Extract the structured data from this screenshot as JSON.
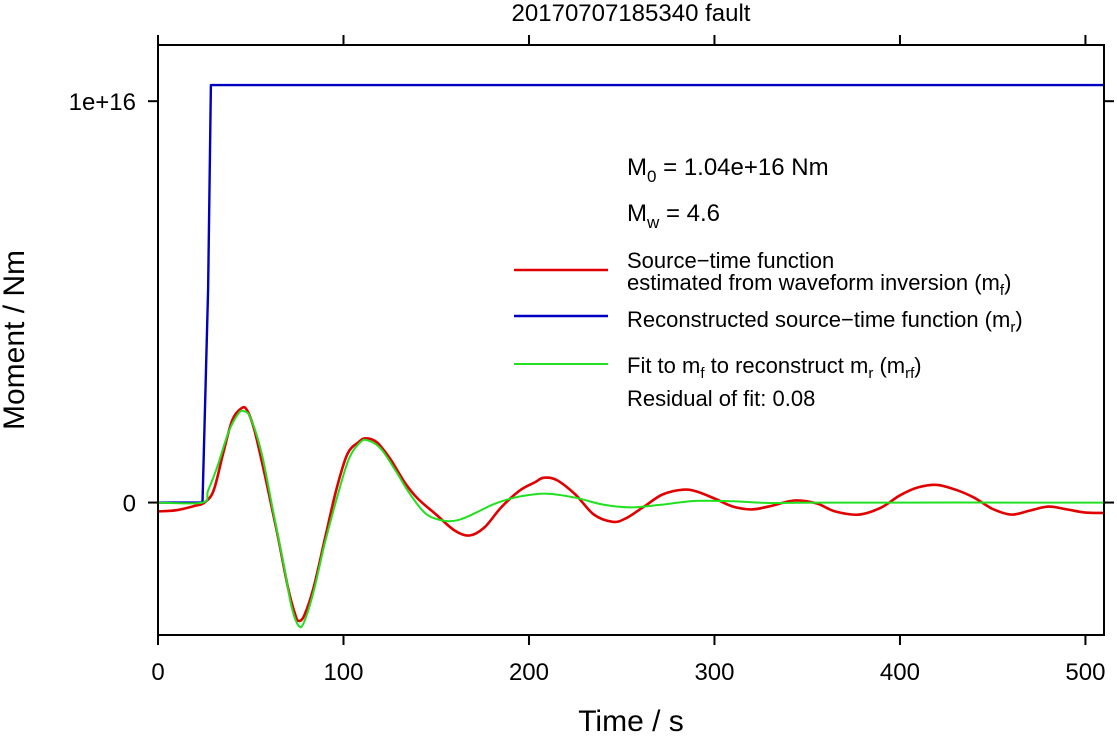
{
  "chart_data": {
    "type": "line",
    "title": "20170707185340 fault",
    "xlabel": "Time / s",
    "ylabel": "Moment / Nm",
    "xlim": [
      0,
      510
    ],
    "ylim": [
      -3300000000000000.0,
      1.14e+16
    ],
    "xticks": [
      0,
      100,
      200,
      300,
      400,
      500
    ],
    "xtick_labels": [
      "0",
      "100",
      "200",
      "300",
      "400",
      "500"
    ],
    "yticks": [
      0,
      1e+16
    ],
    "ytick_labels": [
      "0",
      "1e+16"
    ],
    "grid": false,
    "legend_position": "right",
    "annotations": {
      "m0_prefix": "M",
      "m0_sub": "0",
      "m0_value": " = 1.04e+16 Nm",
      "mw_prefix": "M",
      "mw_sub": "w",
      "mw_value": " = 4.6"
    },
    "legend": [
      {
        "color": "#e00000",
        "line1": "Source−time function",
        "line2_a": "estimated from waveform inversion (m",
        "line2_sub": "f",
        "line2_b": ")"
      },
      {
        "color": "#0000c0",
        "line1_a": "Reconstructed source−time function (m",
        "line1_sub": "r",
        "line1_b": ")"
      },
      {
        "color": "#20e020",
        "line1_a": "Fit to m",
        "line1_sub1": "f",
        "line1_b": " to reconstruct m",
        "line1_sub2": "r",
        "line1_c": " (m",
        "line1_sub3": "rf",
        "line1_d": ")",
        "line2": "Residual of fit: 0.08"
      }
    ],
    "series": [
      {
        "name": "Source−time function estimated from waveform inversion (mf)",
        "color": "#e00000",
        "points": [
          [
            0,
            -220000000000000.0
          ],
          [
            10,
            -190000000000000.0
          ],
          [
            20,
            -80000000000000.0
          ],
          [
            25,
            0
          ],
          [
            30,
            300000000000000.0
          ],
          [
            35,
            1200000000000000.0
          ],
          [
            40,
            2050000000000000.0
          ],
          [
            45,
            2350000000000000.0
          ],
          [
            48,
            2300000000000000.0
          ],
          [
            52,
            1800000000000000.0
          ],
          [
            58,
            600000000000000.0
          ],
          [
            64,
            -700000000000000.0
          ],
          [
            70,
            -2100000000000000.0
          ],
          [
            74,
            -2800000000000000.0
          ],
          [
            76,
            -2950000000000000.0
          ],
          [
            79,
            -2800000000000000.0
          ],
          [
            84,
            -2100000000000000.0
          ],
          [
            90,
            -900000000000000.0
          ],
          [
            96,
            300000000000000.0
          ],
          [
            102,
            1200000000000000.0
          ],
          [
            108,
            1500000000000000.0
          ],
          [
            112,
            1600000000000000.0
          ],
          [
            118,
            1500000000000000.0
          ],
          [
            125,
            1100000000000000.0
          ],
          [
            133,
            500000000000000.0
          ],
          [
            140,
            100000000000000.0
          ],
          [
            150,
            -300000000000000.0
          ],
          [
            160,
            -700000000000000.0
          ],
          [
            168,
            -820000000000000.0
          ],
          [
            176,
            -620000000000000.0
          ],
          [
            185,
            -120000000000000.0
          ],
          [
            195,
            300000000000000.0
          ],
          [
            203,
            500000000000000.0
          ],
          [
            208,
            620000000000000.0
          ],
          [
            215,
            560000000000000.0
          ],
          [
            225,
            200000000000000.0
          ],
          [
            235,
            -300000000000000.0
          ],
          [
            245,
            -480000000000000.0
          ],
          [
            252,
            -400000000000000.0
          ],
          [
            262,
            -100000000000000.0
          ],
          [
            272,
            200000000000000.0
          ],
          [
            283,
            320000000000000.0
          ],
          [
            290,
            280000000000000.0
          ],
          [
            300,
            100000000000000.0
          ],
          [
            310,
            -100000000000000.0
          ],
          [
            320,
            -170000000000000.0
          ],
          [
            330,
            -90000000000000.0
          ],
          [
            343,
            50000000000000.0
          ],
          [
            355,
            -20000000000000.0
          ],
          [
            365,
            -220000000000000.0
          ],
          [
            378,
            -300000000000000.0
          ],
          [
            390,
            -120000000000000.0
          ],
          [
            400,
            180000000000000.0
          ],
          [
            410,
            380000000000000.0
          ],
          [
            420,
            440000000000000.0
          ],
          [
            430,
            320000000000000.0
          ],
          [
            440,
            120000000000000.0
          ],
          [
            450,
            -160000000000000.0
          ],
          [
            460,
            -300000000000000.0
          ],
          [
            470,
            -200000000000000.0
          ],
          [
            480,
            -100000000000000.0
          ],
          [
            490,
            -170000000000000.0
          ],
          [
            500,
            -250000000000000.0
          ],
          [
            510,
            -260000000000000.0
          ]
        ]
      },
      {
        "name": "Reconstructed source−time function (mr)",
        "color": "#0000c0",
        "points": [
          [
            0,
            0
          ],
          [
            24,
            0
          ],
          [
            27,
            5300000000000000.0
          ],
          [
            28.5,
            1.04e+16
          ],
          [
            510,
            1.04e+16
          ]
        ]
      },
      {
        "name": "Fit to mf to reconstruct mr (mrf)",
        "color": "#20e020",
        "points": [
          [
            0,
            0
          ],
          [
            24,
            0
          ],
          [
            27,
            300000000000000.0
          ],
          [
            32,
            900000000000000.0
          ],
          [
            38,
            1750000000000000.0
          ],
          [
            43,
            2200000000000000.0
          ],
          [
            46,
            2280000000000000.0
          ],
          [
            50,
            2100000000000000.0
          ],
          [
            56,
            1200000000000000.0
          ],
          [
            62,
            -200000000000000.0
          ],
          [
            68,
            -1600000000000000.0
          ],
          [
            72,
            -2600000000000000.0
          ],
          [
            76,
            -3080000000000000.0
          ],
          [
            79,
            -2950000000000000.0
          ],
          [
            84,
            -2200000000000000.0
          ],
          [
            90,
            -1000000000000000.0
          ],
          [
            97,
            200000000000000.0
          ],
          [
            103,
            1100000000000000.0
          ],
          [
            109,
            1500000000000000.0
          ],
          [
            113,
            1550000000000000.0
          ],
          [
            120,
            1350000000000000.0
          ],
          [
            128,
            800000000000000.0
          ],
          [
            136,
            200000000000000.0
          ],
          [
            145,
            -300000000000000.0
          ],
          [
            155,
            -460000000000000.0
          ],
          [
            163,
            -420000000000000.0
          ],
          [
            172,
            -240000000000000.0
          ],
          [
            182,
            -20000000000000.0
          ],
          [
            195,
            150000000000000.0
          ],
          [
            210,
            220000000000000.0
          ],
          [
            225,
            120000000000000.0
          ],
          [
            240,
            -50000000000000.0
          ],
          [
            255,
            -120000000000000.0
          ],
          [
            270,
            -60000000000000.0
          ],
          [
            290,
            40000000000000.0
          ],
          [
            310,
            30000000000000.0
          ],
          [
            330,
            -10000000000000.0
          ],
          [
            360,
            0
          ],
          [
            510,
            0
          ]
        ]
      }
    ]
  }
}
